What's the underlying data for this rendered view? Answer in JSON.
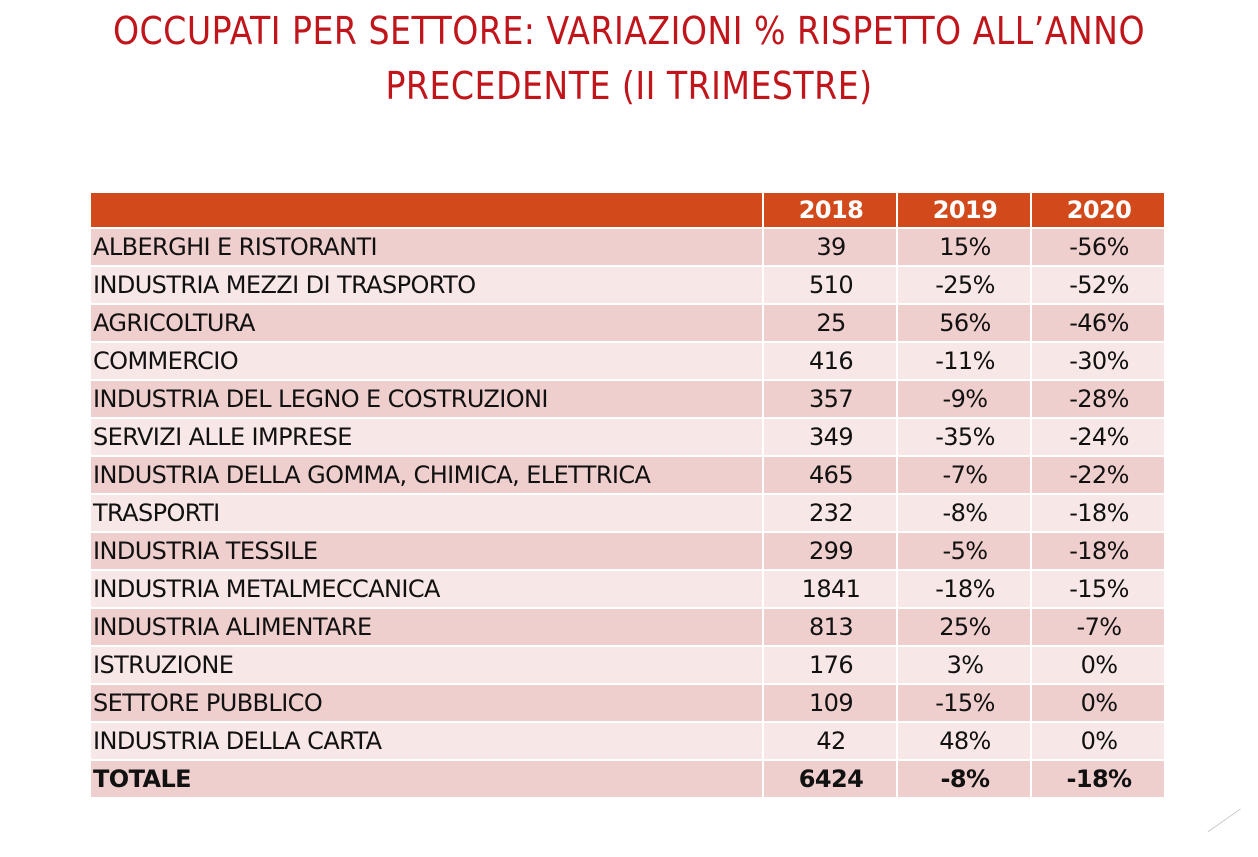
{
  "title": {
    "line1": "OCCUPATI PER SETTORE: VARIAZIONI % RISPETTO ALL’ANNO",
    "line2": "PRECEDENTE (II TRIMESTRE)"
  },
  "table": {
    "headers": [
      "",
      "2018",
      "2019",
      "2020"
    ],
    "rows": [
      [
        "ALBERGHI E RISTORANTI",
        "39",
        "15%",
        "-56%"
      ],
      [
        "INDUSTRIA MEZZI DI TRASPORTO",
        "510",
        "-25%",
        "-52%"
      ],
      [
        "AGRICOLTURA",
        "25",
        "56%",
        "-46%"
      ],
      [
        "COMMERCIO",
        "416",
        "-11%",
        "-30%"
      ],
      [
        "INDUSTRIA DEL LEGNO E COSTRUZIONI",
        "357",
        "-9%",
        "-28%"
      ],
      [
        "SERVIZI ALLE IMPRESE",
        "349",
        "-35%",
        "-24%"
      ],
      [
        "INDUSTRIA DELLA GOMMA, CHIMICA, ELETTRICA",
        "465",
        "-7%",
        "-22%"
      ],
      [
        "TRASPORTI",
        "232",
        "-8%",
        "-18%"
      ],
      [
        "INDUSTRIA TESSILE",
        "299",
        "-5%",
        "-18%"
      ],
      [
        "INDUSTRIA METALMECCANICA",
        "1841",
        "-18%",
        "-15%"
      ],
      [
        "INDUSTRIA ALIMENTARE",
        "813",
        "25%",
        "-7%"
      ],
      [
        "ISTRUZIONE",
        "176",
        "3%",
        "0%"
      ],
      [
        "SETTORE PUBBLICO",
        "109",
        "-15%",
        "0%"
      ],
      [
        "INDUSTRIA DELLA CARTA",
        "42",
        "48%",
        "0%"
      ]
    ],
    "total": [
      "TOTALE",
      "6424",
      "-8%",
      "-18%"
    ]
  }
}
